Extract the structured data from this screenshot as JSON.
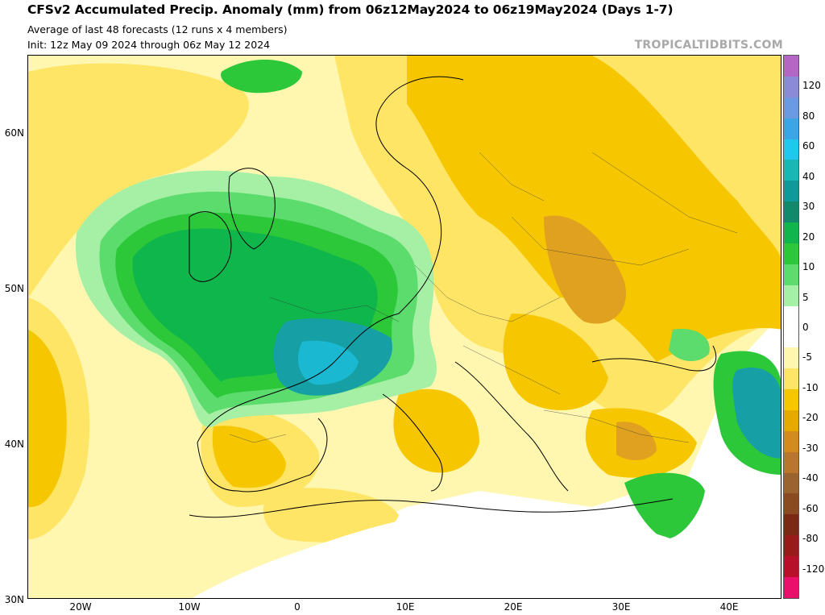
{
  "header": {
    "title": "CFSv2 Accumulated Precip. Anomaly (mm) from 06z12May2024 to 06z19May2024 (Days 1-7)",
    "subtitle_1": "Average of last 48 forecasts (12 runs x 4 members)",
    "subtitle_2": "Init: 12z May 09 2024 through 06z May 12 2024",
    "brand": "TROPICALTIDBITS.COM"
  },
  "axes": {
    "lat_labels": [
      "60N",
      "50N",
      "40N",
      "30N"
    ],
    "lon_labels": [
      "20W",
      "10W",
      "0",
      "10E",
      "20E",
      "30E",
      "40E"
    ]
  },
  "colorbar": {
    "labels": [
      "120",
      "80",
      "60",
      "40",
      "30",
      "20",
      "10",
      "5",
      "0",
      "-5",
      "-10",
      "-20",
      "-30",
      "-40",
      "-60",
      "-80",
      "-120"
    ],
    "colors": [
      "#b466c4",
      "#8a8ad6",
      "#6a9ae2",
      "#3aa6e8",
      "#1ec8ee",
      "#16b8b6",
      "#0e9a9a",
      "#108a6a",
      "#0fb64b",
      "#2cc83a",
      "#5cdc6c",
      "#a6f0a6",
      "#ffffff",
      "#ffffff",
      "#fff7b0",
      "#ffe566",
      "#f6c700",
      "#e6a900",
      "#d48a1c",
      "#b8772c",
      "#9a6430",
      "#8a4a22",
      "#7a2a14",
      "#9a1a1a",
      "#b8102a",
      "#e8106a"
    ]
  },
  "legend_colors": {
    "wet_light": "#a6f0a6",
    "wet_mid": "#2cc83a",
    "wet_strong": "#0fb64b",
    "wet_max": "#16a0a6",
    "dry_light": "#fff7b0",
    "dry_mid": "#ffe566",
    "dry_strong": "#f6c700",
    "dry_max": "#e0a020"
  }
}
